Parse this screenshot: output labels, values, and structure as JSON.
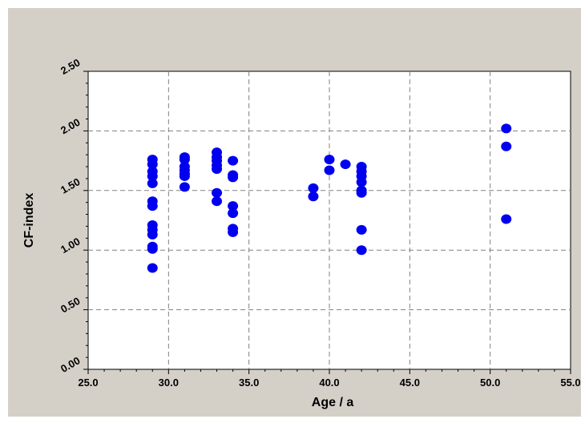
{
  "chart_data": {
    "type": "scatter",
    "title": "",
    "xlabel": "Age / a",
    "ylabel": "CF-index",
    "xlim": [
      25.0,
      55.0
    ],
    "ylim": [
      0.0,
      2.5
    ],
    "x_ticks": [
      "25.0",
      "30.0",
      "35.0",
      "40.0",
      "45.0",
      "50.0",
      "55.0"
    ],
    "y_ticks": [
      "0.00",
      "0.50",
      "1.00",
      "1.50",
      "2.00",
      "2.50"
    ],
    "grid": true,
    "marker_color": "#0000ee",
    "series": [
      {
        "points": [
          [
            29,
            1.76
          ],
          [
            29,
            1.72
          ],
          [
            29,
            1.66
          ],
          [
            29,
            1.62
          ],
          [
            29,
            1.56
          ],
          [
            29,
            1.41
          ],
          [
            29,
            1.37
          ],
          [
            29,
            1.21
          ],
          [
            29,
            1.17
          ],
          [
            29,
            1.13
          ],
          [
            29,
            1.03
          ],
          [
            29,
            1.01
          ],
          [
            29,
            0.85
          ],
          [
            31,
            1.78
          ],
          [
            31,
            1.76
          ],
          [
            31,
            1.7
          ],
          [
            31,
            1.67
          ],
          [
            31,
            1.64
          ],
          [
            31,
            1.62
          ],
          [
            31,
            1.53
          ],
          [
            33,
            1.82
          ],
          [
            33,
            1.78
          ],
          [
            33,
            1.75
          ],
          [
            33,
            1.71
          ],
          [
            33,
            1.68
          ],
          [
            33,
            1.48
          ],
          [
            33,
            1.41
          ],
          [
            34,
            1.75
          ],
          [
            34,
            1.63
          ],
          [
            34,
            1.61
          ],
          [
            34,
            1.37
          ],
          [
            34,
            1.31
          ],
          [
            34,
            1.18
          ],
          [
            34,
            1.15
          ],
          [
            39,
            1.52
          ],
          [
            39,
            1.45
          ],
          [
            40,
            1.76
          ],
          [
            40,
            1.67
          ],
          [
            41,
            1.72
          ],
          [
            42,
            1.7
          ],
          [
            42,
            1.66
          ],
          [
            42,
            1.62
          ],
          [
            42,
            1.57
          ],
          [
            42,
            1.5
          ],
          [
            42,
            1.48
          ],
          [
            42,
            1.17
          ],
          [
            42,
            1.0
          ],
          [
            51,
            2.02
          ],
          [
            51,
            1.87
          ],
          [
            51,
            1.26
          ]
        ]
      }
    ]
  }
}
